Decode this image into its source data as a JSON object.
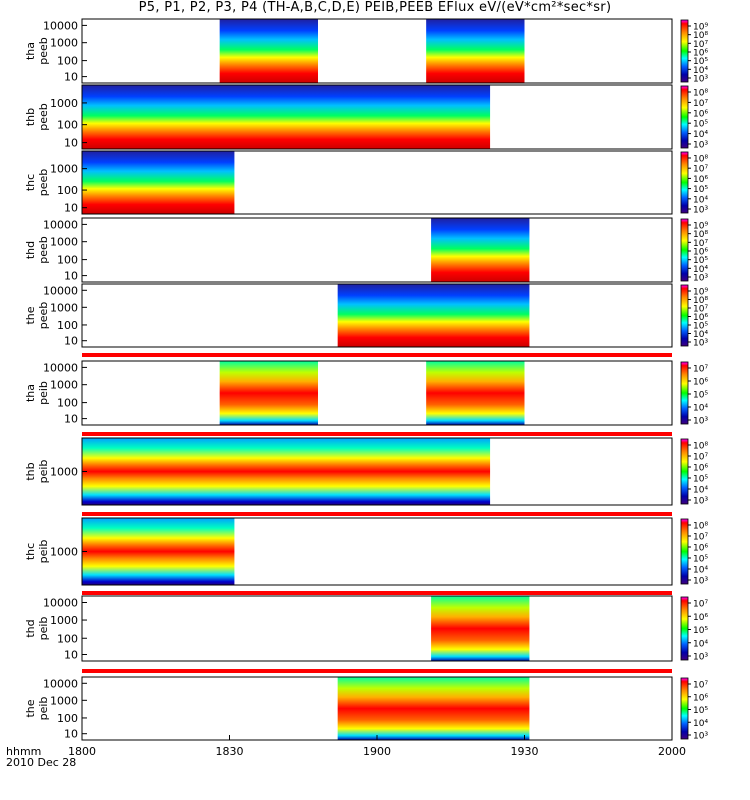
{
  "title": "P5, P1, P2, P3, P4 (TH-A,B,C,D,E) PEIB,PEEB EFlux eV/(eV*cm²*sec*sr)",
  "time_axis": {
    "label_line1": "hhmm",
    "label_line2": "2010 Dec 28",
    "ticks": [
      "1800",
      "1830",
      "1900",
      "1930",
      "2000"
    ],
    "range_minutes": [
      0,
      120
    ]
  },
  "chart_data": [
    {
      "type": "heatmap",
      "ylabel1": "tha",
      "ylabel2": "peeb",
      "yticks": [
        "10000",
        "1000",
        "100",
        "10"
      ],
      "cbar_ticks": [
        "10⁹",
        "10⁸",
        "10⁷",
        "10⁶",
        "10⁵",
        "10⁴",
        "10³"
      ],
      "coverage_minutes": [
        [
          28,
          48
        ],
        [
          70,
          90
        ]
      ],
      "gaps": [
        [
          48,
          70
        ]
      ],
      "separator": false
    },
    {
      "type": "heatmap",
      "ylabel1": "thb",
      "ylabel2": "peeb",
      "yticks": [
        "1000",
        "100",
        "10"
      ],
      "cbar_ticks": [
        "10⁸",
        "10⁷",
        "10⁶",
        "10⁵",
        "10⁴",
        "10³"
      ],
      "coverage_minutes": [
        [
          0,
          83
        ]
      ],
      "gaps": [],
      "separator": false
    },
    {
      "type": "heatmap",
      "ylabel1": "thc",
      "ylabel2": "peeb",
      "yticks": [
        "1000",
        "100",
        "10"
      ],
      "cbar_ticks": [
        "10⁸",
        "10⁷",
        "10⁶",
        "10⁵",
        "10⁴",
        "10³"
      ],
      "coverage_minutes": [
        [
          0,
          31
        ]
      ],
      "gaps": [],
      "separator": false
    },
    {
      "type": "heatmap",
      "ylabel1": "thd",
      "ylabel2": "peeb",
      "yticks": [
        "10000",
        "1000",
        "100",
        "10"
      ],
      "cbar_ticks": [
        "10⁹",
        "10⁸",
        "10⁷",
        "10⁶",
        "10⁵",
        "10⁴",
        "10³"
      ],
      "coverage_minutes": [
        [
          71,
          91
        ]
      ],
      "gaps": [],
      "separator": false
    },
    {
      "type": "heatmap",
      "ylabel1": "the",
      "ylabel2": "peeb",
      "yticks": [
        "10000",
        "1000",
        "100",
        "10"
      ],
      "cbar_ticks": [
        "10⁹",
        "10⁸",
        "10⁷",
        "10⁶",
        "10⁵",
        "10⁴",
        "10³"
      ],
      "coverage_minutes": [
        [
          52,
          91
        ]
      ],
      "gaps": [],
      "separator": true
    },
    {
      "type": "heatmap",
      "ylabel1": "tha",
      "ylabel2": "peib",
      "yticks": [
        "10000",
        "1000",
        "100",
        "10"
      ],
      "cbar_ticks": [
        "10⁷",
        "10⁶",
        "10⁵",
        "10⁴",
        "10³"
      ],
      "coverage_minutes": [
        [
          28,
          48
        ],
        [
          70,
          90
        ]
      ],
      "gaps": [],
      "separator": true
    },
    {
      "type": "heatmap",
      "ylabel1": "thb",
      "ylabel2": "peib",
      "yticks": [
        "1000"
      ],
      "cbar_ticks": [
        "10⁸",
        "10⁷",
        "10⁶",
        "10⁵",
        "10⁴",
        "10³"
      ],
      "coverage_minutes": [
        [
          0,
          83
        ]
      ],
      "gaps": [],
      "separator": true
    },
    {
      "type": "heatmap",
      "ylabel1": "thc",
      "ylabel2": "peib",
      "yticks": [
        "1000"
      ],
      "cbar_ticks": [
        "10⁸",
        "10⁷",
        "10⁶",
        "10⁵",
        "10⁴",
        "10³"
      ],
      "coverage_minutes": [
        [
          0,
          31
        ]
      ],
      "gaps": [],
      "separator": true
    },
    {
      "type": "heatmap",
      "ylabel1": "thd",
      "ylabel2": "peib",
      "yticks": [
        "10000",
        "1000",
        "100",
        "10"
      ],
      "cbar_ticks": [
        "10⁷",
        "10⁶",
        "10⁵",
        "10⁴",
        "10³"
      ],
      "coverage_minutes": [
        [
          71,
          91
        ]
      ],
      "gaps": [],
      "separator": true
    },
    {
      "type": "heatmap",
      "ylabel1": "the",
      "ylabel2": "peib",
      "yticks": [
        "10000",
        "1000",
        "100",
        "10"
      ],
      "cbar_ticks": [
        "10⁷",
        "10⁶",
        "10⁵",
        "10⁴",
        "10³"
      ],
      "coverage_minutes": [
        [
          52,
          91
        ]
      ],
      "gaps": [],
      "separator": false
    }
  ],
  "colors": {
    "separator": "#ff0000",
    "background": "#ffffff"
  }
}
